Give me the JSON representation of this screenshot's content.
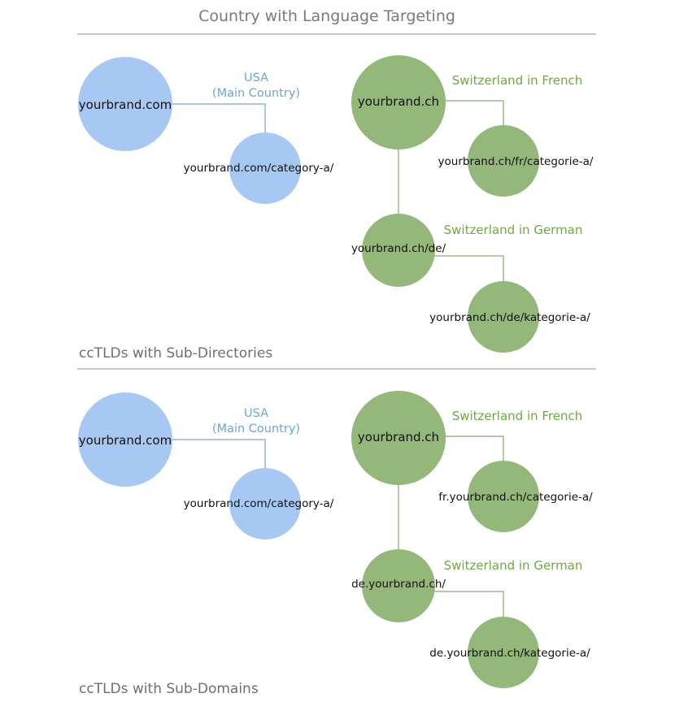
{
  "title": "Country with Language Targeting",
  "colors": {
    "blue_node": "#a8c8f4",
    "green_node": "#94b77a",
    "blue_text": "#6ea4d8",
    "green_text": "#6cab3f",
    "line_blue": "#8fb5e6",
    "line_green": "#9cbc82",
    "divider": "#b5b5b5"
  },
  "sections": [
    {
      "label": "ccTLDs with Sub-Directories",
      "usa": {
        "root": "yourbrand.com",
        "country_label": "USA",
        "country_sublabel": "(Main Country)",
        "child": "yourbrand.com/category-a/"
      },
      "switzerland": {
        "root": "yourbrand.ch",
        "french_label": "Switzerland in French",
        "french_child": "yourbrand.ch/fr/categorie-a/",
        "german_label": "Switzerland in German",
        "german_node": "yourbrand.ch/de/",
        "german_child": "yourbrand.ch/de/kategorie-a/"
      }
    },
    {
      "label": "ccTLDs with Sub-Domains",
      "usa": {
        "root": "yourbrand.com",
        "country_label": "USA",
        "country_sublabel": "(Main Country)",
        "child": "yourbrand.com/category-a/"
      },
      "switzerland": {
        "root": "yourbrand.ch",
        "french_label": "Switzerland in French",
        "french_child": "fr.yourbrand.ch/categorie-a/",
        "german_label": "Switzerland in German",
        "german_node": "de.yourbrand.ch/",
        "german_child": "de.yourbrand.ch/kategorie-a/"
      }
    }
  ]
}
